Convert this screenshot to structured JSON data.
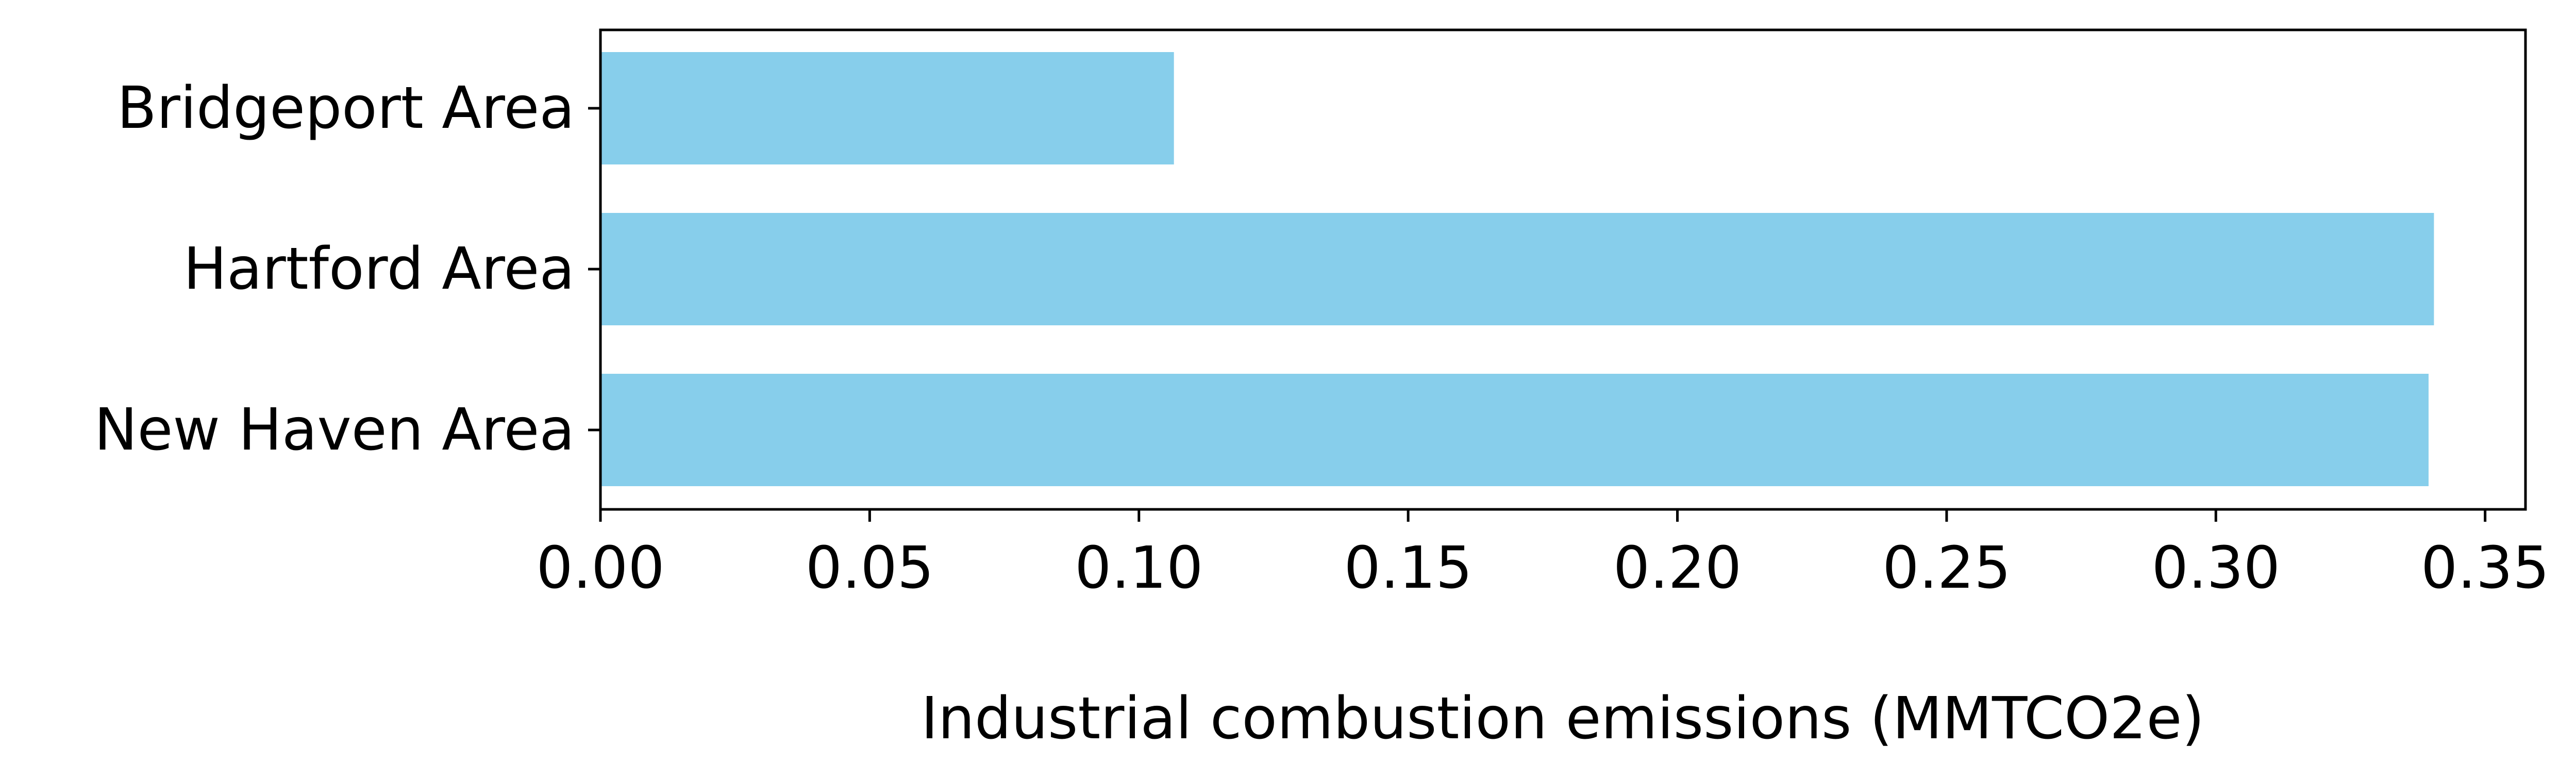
{
  "chart_data": {
    "type": "bar",
    "orientation": "horizontal",
    "categories": [
      "Bridgeport Area",
      "Hartford Area",
      "New Haven Area"
    ],
    "values": [
      0.1065,
      0.3405,
      0.3395
    ],
    "xlabel": "Industrial combustion emissions (MMTCO2e)",
    "ylabel": "",
    "xlim": [
      0,
      0.3575
    ],
    "xticks": [
      0.0,
      0.05,
      0.1,
      0.15,
      0.2,
      0.25,
      0.3,
      0.35
    ],
    "xtick_labels": [
      "0.00",
      "0.05",
      "0.10",
      "0.15",
      "0.20",
      "0.25",
      "0.30",
      "0.35"
    ],
    "grid": false,
    "bar_color": "#87CEEB"
  }
}
